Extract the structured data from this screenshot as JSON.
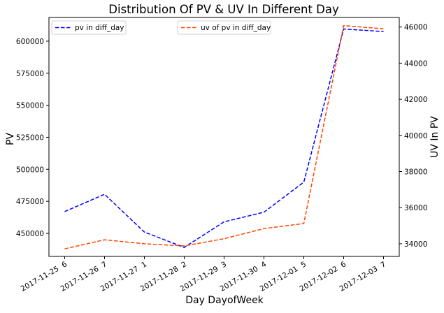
{
  "chart_data": {
    "type": "line",
    "title": "Distribution Of PV & UV In Different Day",
    "xlabel": "Day DayofWeek",
    "ylabel": "PV",
    "y2label": "UV In PV",
    "categories": [
      "2017-11-25  6",
      "2017-11-26  7",
      "2017-11-27  1",
      "2017-11-28  2",
      "2017-11-29  3",
      "2017-11-30  4",
      "2017-12-01  5",
      "2017-12-02  6",
      "2017-12-03  7"
    ],
    "series": [
      {
        "name": "pv in diff_day",
        "axis": "left",
        "color": "#0000ff",
        "values": [
          467000,
          480500,
          451000,
          439000,
          459000,
          466500,
          490000,
          609500,
          607500
        ]
      },
      {
        "name": "uv of pv in diff_day",
        "axis": "right",
        "color": "#ff4500",
        "values": [
          33720,
          34220,
          34000,
          33880,
          34280,
          34840,
          35120,
          46080,
          45900
        ]
      }
    ],
    "ylim": [
      432000,
      618500
    ],
    "y2lim": [
      33300,
      46530
    ],
    "yticks": [
      450000,
      475000,
      500000,
      525000,
      550000,
      575000,
      600000
    ],
    "y2ticks": [
      34000,
      36000,
      38000,
      40000,
      42000,
      44000,
      46000
    ],
    "legend": [
      {
        "label": "pv in diff_day",
        "placement": "upper-left"
      },
      {
        "label": "uv of pv in diff_day",
        "placement": "upper-center"
      }
    ],
    "grid": false
  }
}
